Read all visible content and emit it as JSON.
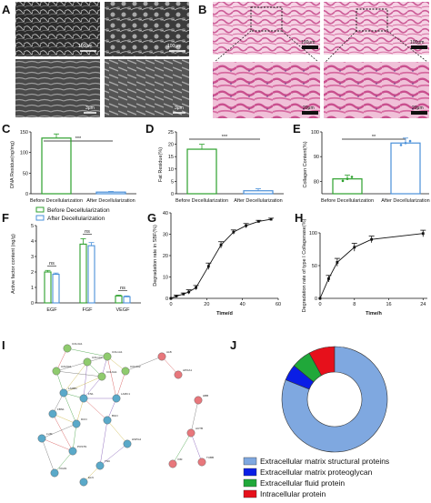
{
  "panels": [
    "A",
    "B",
    "C",
    "D",
    "E",
    "F",
    "G",
    "H",
    "I",
    "J"
  ],
  "scale_bars": {
    "a1": "100μm",
    "a2": "100μm",
    "a3": "3μm",
    "a4": "3μm",
    "b1": "100μm",
    "b2": "100μm",
    "b3": "20μm",
    "b4": "20μm"
  },
  "colors": {
    "before": "#2ca02c",
    "after": "#4a90d9",
    "sem": "#3a3a3a",
    "he_bg": "#f3c7dc",
    "he_tissue": "#d25f9b"
  },
  "chart_data": [
    {
      "id": "C",
      "type": "bar",
      "categories": [
        "Before Decellularization",
        "After Decellularization"
      ],
      "values": [
        135,
        4
      ],
      "errors": [
        10,
        1.5
      ],
      "ylabel": "DNA Residue(ng/mg)",
      "ylim": [
        0,
        150
      ],
      "yticks": [
        0,
        50,
        100,
        150
      ],
      "significance": "***"
    },
    {
      "id": "D",
      "type": "bar",
      "categories": [
        "Before Decellularization",
        "After Decellularization"
      ],
      "values": [
        18,
        1.2
      ],
      "errors": [
        2,
        0.8
      ],
      "ylabel": "Fat Residue(%)",
      "ylim": [
        0,
        25
      ],
      "yticks": [
        0,
        5,
        10,
        15,
        20,
        25
      ],
      "significance": "***"
    },
    {
      "id": "E",
      "type": "bar",
      "categories": [
        "Before Decellularization",
        "After Decellularization"
      ],
      "values": [
        81,
        95.5
      ],
      "errors": [
        1.5,
        2
      ],
      "ylabel": "Collagen Content(%)",
      "ylim": [
        75,
        100
      ],
      "yticks": [
        80,
        90,
        100
      ],
      "significance": "**"
    },
    {
      "id": "F",
      "type": "bar",
      "legend": [
        "Before Decellularization",
        "After Decellularization"
      ],
      "categories": [
        "EGF",
        "FGF",
        "VEGF"
      ],
      "series": [
        {
          "name": "Before Decellularization",
          "values": [
            2.0,
            3.8,
            0.45
          ],
          "errors": [
            0.1,
            0.35,
            0.05
          ]
        },
        {
          "name": "After Decellularization",
          "values": [
            1.85,
            3.7,
            0.4
          ],
          "errors": [
            0.08,
            0.2,
            0.05
          ]
        }
      ],
      "ylabel": "Active factor content (ng/g)",
      "ylim": [
        0,
        5
      ],
      "yticks": [
        0,
        1,
        2,
        3,
        4,
        5
      ],
      "significance": [
        "ns",
        "ns",
        "ns"
      ]
    },
    {
      "id": "G",
      "type": "line",
      "x": [
        0,
        3,
        7,
        10,
        14,
        21,
        28,
        35,
        42,
        49,
        56
      ],
      "y": [
        0,
        1,
        2,
        3,
        5,
        15,
        25,
        31,
        34,
        36,
        37
      ],
      "errors": [
        0,
        0.5,
        0.5,
        1,
        1,
        1.5,
        1.5,
        1,
        1,
        0.5,
        0.5
      ],
      "xlabel": "Time/d",
      "ylabel": "Degradation rate in SBF(%)",
      "xlim": [
        0,
        60
      ],
      "ylim": [
        0,
        40
      ],
      "xticks": [
        0,
        20,
        40,
        60
      ],
      "yticks": [
        0,
        10,
        20,
        30,
        40
      ]
    },
    {
      "id": "H",
      "type": "line",
      "x": [
        0,
        2,
        4,
        8,
        12,
        24
      ],
      "y": [
        0,
        30,
        55,
        78,
        90,
        99
      ],
      "errors": [
        0,
        5,
        6,
        6,
        5,
        5
      ],
      "xlabel": "Time/h",
      "ylabel": "Degradation rate of type I Collagenase(%)",
      "xlim": [
        0,
        25
      ],
      "ylim": [
        0,
        100
      ],
      "xticks": [
        0,
        8,
        16,
        24
      ],
      "yticks": [
        0,
        50,
        100
      ]
    },
    {
      "id": "J",
      "type": "pie",
      "donut": true,
      "labels": [
        "Extracellular matrix structural proteins",
        "Extracellular matrix proteoglycan",
        "Extracellular fluid protein",
        "Intracellular protein"
      ],
      "values": [
        81,
        5,
        6,
        8
      ],
      "colors": [
        "#7fa8e0",
        "#0a1ee6",
        "#20a83a",
        "#e6101b"
      ]
    }
  ],
  "network": {
    "nodes": [
      {
        "label": "COL1A1",
        "c": "#8fcb6e"
      },
      {
        "label": "COL1A2",
        "c": "#8fcb6e"
      },
      {
        "label": "COL3A1",
        "c": "#8fcb6e"
      },
      {
        "label": "COL5A1",
        "c": "#8fcb6e"
      },
      {
        "label": "COL6A1",
        "c": "#8fcb6e"
      },
      {
        "label": "COL6A2",
        "c": "#8fcb6e"
      },
      {
        "label": "FN1",
        "c": "#5aa9c9"
      },
      {
        "label": "LAMB1",
        "c": "#5aa9c9"
      },
      {
        "label": "LAMC1",
        "c": "#5aa9c9"
      },
      {
        "label": "FBN1",
        "c": "#5aa9c9"
      },
      {
        "label": "DCN",
        "c": "#5aa9c9"
      },
      {
        "label": "BGN",
        "c": "#5aa9c9"
      },
      {
        "label": "LUM",
        "c": "#5aa9c9"
      },
      {
        "label": "POSTN",
        "c": "#5aa9c9"
      },
      {
        "label": "TNC",
        "c": "#5aa9c9"
      },
      {
        "label": "HSPG2",
        "c": "#5aa9c9"
      },
      {
        "label": "VCAN",
        "c": "#5aa9c9"
      },
      {
        "label": "ELN",
        "c": "#5aa9c9"
      },
      {
        "label": "ALB",
        "c": "#e8777c"
      },
      {
        "label": "APOA1",
        "c": "#e8777c"
      },
      {
        "label": "HBB",
        "c": "#e8777c"
      },
      {
        "label": "ACTB",
        "c": "#e8777c"
      },
      {
        "label": "VIM",
        "c": "#e8777c"
      },
      {
        "label": "TUBB",
        "c": "#e8777c"
      }
    ]
  }
}
